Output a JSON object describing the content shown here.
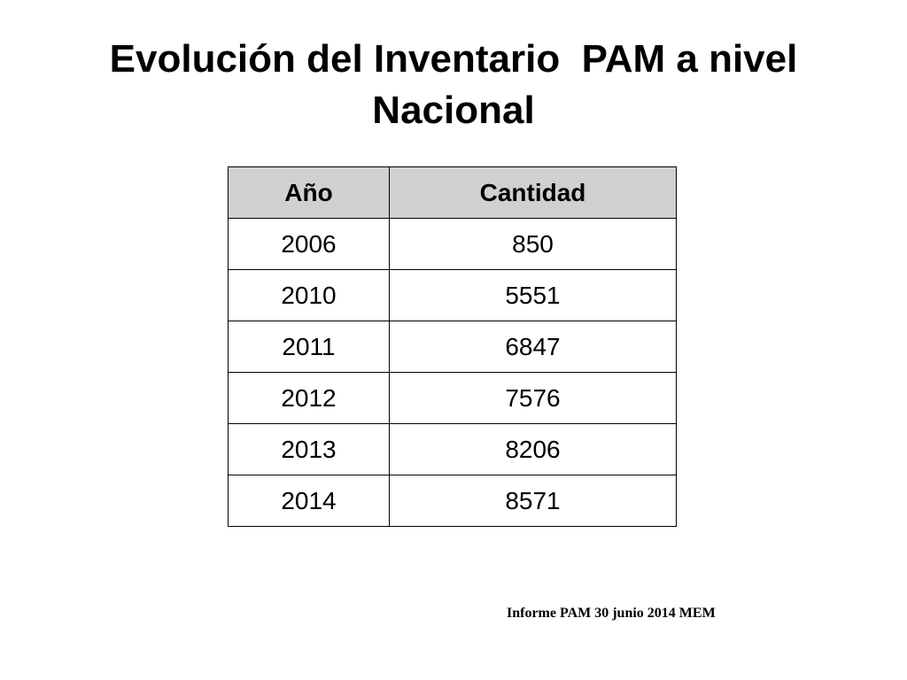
{
  "title": "Evolución del Inventario  PAM a nivel Nacional",
  "table": {
    "header": [
      "Año",
      "Cantidad"
    ],
    "rows": [
      [
        2006,
        850
      ],
      [
        2010,
        5551
      ],
      [
        2011,
        6847
      ],
      [
        2012,
        7576
      ],
      [
        2013,
        8206
      ],
      [
        2014,
        8571
      ]
    ]
  },
  "footer": "Informe PAM 30 junio 2014 MEM"
}
